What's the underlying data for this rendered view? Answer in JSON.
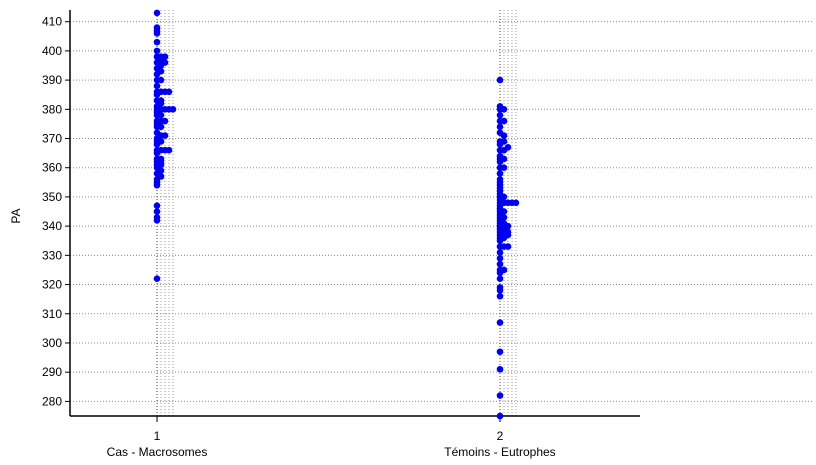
{
  "chart_data": {
    "type": "scatter",
    "subtype": "dot-strip plot",
    "title": "",
    "xlabel": "",
    "ylabel": "PA",
    "ylim": [
      275,
      414
    ],
    "yticks": [
      280,
      290,
      300,
      310,
      320,
      330,
      340,
      350,
      360,
      370,
      380,
      390,
      400,
      410
    ],
    "grid": {
      "horizontal": true,
      "style": "dotted"
    },
    "point_color": "#0000ee",
    "groups": [
      {
        "x": 1,
        "tick_label": "1",
        "name": "Cas - Macrosomes",
        "columns": [
          [
            322,
            342,
            343,
            345,
            347,
            354,
            355,
            356,
            358,
            360,
            361,
            362,
            363,
            365,
            366,
            368,
            369,
            370,
            372,
            374,
            375,
            376,
            378,
            379,
            380,
            381,
            383,
            385,
            386,
            388,
            390,
            392,
            394,
            396,
            398,
            400,
            403,
            406,
            407,
            408,
            413
          ],
          [
            357,
            359,
            361,
            362,
            363,
            366,
            369,
            371,
            374,
            376,
            378,
            380,
            382,
            383,
            386,
            390,
            393,
            395,
            397,
            398
          ],
          [
            366,
            371,
            376,
            380,
            386,
            396,
            398
          ],
          [
            366,
            380,
            386
          ],
          [
            380
          ]
        ]
      },
      {
        "x": 2,
        "tick_label": "2",
        "name": "Témoins - Eutrophes",
        "columns": [
          [
            275,
            282,
            291,
            297,
            307,
            316,
            318,
            319,
            322,
            324,
            325,
            327,
            329,
            331,
            333,
            335,
            336,
            337,
            338,
            339,
            340,
            341,
            342,
            343,
            344,
            345,
            346,
            347,
            348,
            349,
            350,
            351,
            352,
            353,
            354,
            355,
            356,
            358,
            360,
            362,
            363,
            364,
            366,
            368,
            369,
            372,
            374,
            376,
            378,
            380,
            381,
            390
          ],
          [
            325,
            333,
            336,
            338,
            339,
            340,
            341,
            343,
            345,
            348,
            350,
            360,
            363,
            366,
            369,
            371,
            376,
            380
          ],
          [
            333,
            337,
            338,
            340,
            348,
            367
          ],
          [
            348
          ],
          [
            348
          ]
        ]
      }
    ]
  }
}
